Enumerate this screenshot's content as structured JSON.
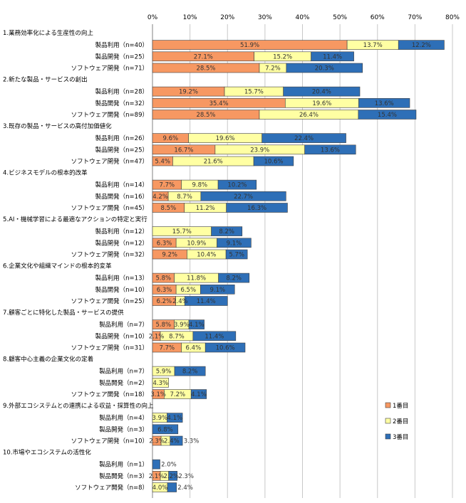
{
  "chart_data": {
    "type": "bar",
    "orientation": "horizontal",
    "stacked": true,
    "xlim": [
      0,
      80
    ],
    "x_ticks": [
      "0%",
      "10%",
      "20%",
      "30%",
      "40%",
      "50%",
      "60%",
      "70%",
      "80%"
    ],
    "grid": true,
    "legend_position": "right",
    "series": [
      {
        "name": "1番目",
        "color": "#F79862"
      },
      {
        "name": "2番目",
        "color": "#FFFFA3"
      },
      {
        "name": "3番目",
        "color": "#2E6FB7"
      }
    ],
    "groups": [
      {
        "label": "1.業務効率化による生産性の向上",
        "rows": [
          {
            "label": "製品利用（n=40）",
            "values": [
              51.9,
              13.7,
              12.2
            ],
            "labels": [
              "51.9%",
              "13.7%",
              "12.2%"
            ]
          },
          {
            "label": "製品開発（n=25）",
            "values": [
              27.1,
              15.2,
              11.4
            ],
            "labels": [
              "27.1%",
              "15.2%",
              "11.4%"
            ]
          },
          {
            "label": "ソフトウェア開発（n=71）",
            "values": [
              28.5,
              7.2,
              20.3
            ],
            "labels": [
              "28.5%",
              "7.2%",
              "20.3%"
            ]
          }
        ]
      },
      {
        "label": "2.新たな製品・サービスの創出",
        "rows": [
          {
            "label": "製品利用（n=28）",
            "values": [
              19.2,
              15.7,
              20.4
            ],
            "labels": [
              "19.2%",
              "15.7%",
              "20.4%"
            ]
          },
          {
            "label": "製品開発（n=32）",
            "values": [
              35.4,
              19.6,
              13.6
            ],
            "labels": [
              "35.4%",
              "19.6%",
              "13.6%"
            ]
          },
          {
            "label": "ソフトウェア開発（n=89）",
            "values": [
              28.5,
              26.4,
              15.4
            ],
            "labels": [
              "28.5%",
              "26.4%",
              "15.4%"
            ]
          }
        ]
      },
      {
        "label": "3.既存の製品・サービスの高付加価値化",
        "rows": [
          {
            "label": "製品利用（n=26）",
            "values": [
              9.6,
              19.6,
              22.4
            ],
            "labels": [
              "9.6%",
              "19.6%",
              "22.4%"
            ]
          },
          {
            "label": "製品開発（n=25）",
            "values": [
              16.7,
              23.9,
              13.6
            ],
            "labels": [
              "16.7%",
              "23.9%",
              "13.6%"
            ]
          },
          {
            "label": "ソフトウェア開発（n=47）",
            "values": [
              5.4,
              21.6,
              10.6
            ],
            "labels": [
              "5.4%",
              "21.6%",
              "10.6%"
            ]
          }
        ]
      },
      {
        "label": "4.ビジネスモデルの根本的改革",
        "rows": [
          {
            "label": "製品利用（n=14）",
            "values": [
              7.7,
              9.8,
              10.2
            ],
            "labels": [
              "7.7%",
              "9.8%",
              "10.2%"
            ]
          },
          {
            "label": "製品開発（n=16）",
            "values": [
              4.2,
              8.7,
              22.7
            ],
            "labels": [
              "4.2%",
              "8.7%",
              "22.7%"
            ]
          },
          {
            "label": "ソフトウェア開発（n=45）",
            "values": [
              8.5,
              11.2,
              16.3
            ],
            "labels": [
              "8.5%",
              "11.2%",
              "16.3%"
            ]
          }
        ]
      },
      {
        "label": "5.AI・機械学習による最適なアクションの特定と実行",
        "rows": [
          {
            "label": "製品利用（n=12）",
            "values": [
              0,
              15.7,
              8.2
            ],
            "labels": [
              "",
              "15.7%",
              "8.2%"
            ]
          },
          {
            "label": "製品開発（n=12）",
            "values": [
              6.3,
              10.9,
              9.1
            ],
            "labels": [
              "6.3%",
              "10.9%",
              "9.1%"
            ]
          },
          {
            "label": "ソフトウェア開発（n=32）",
            "values": [
              9.2,
              10.4,
              5.7
            ],
            "labels": [
              "9.2%",
              "10.4%",
              "5.7%"
            ]
          }
        ]
      },
      {
        "label": "6.企業文化や組織マインドの根本的変革",
        "rows": [
          {
            "label": "製品利用（n=13）",
            "values": [
              5.8,
              11.8,
              8.2
            ],
            "labels": [
              "5.8%",
              "11.8%",
              "8.2%"
            ]
          },
          {
            "label": "製品開発（n=10）",
            "values": [
              6.3,
              6.5,
              9.1
            ],
            "labels": [
              "6.3%",
              "6.5%",
              "9.1%"
            ]
          },
          {
            "label": "ソフトウェア開発（n=25）",
            "values": [
              6.2,
              2.4,
              11.4
            ],
            "labels": [
              "6.2%",
              "2.4%",
              "11.4%"
            ]
          }
        ]
      },
      {
        "label": "7.顧客ごとに特化した製品・サービスの提供",
        "rows": [
          {
            "label": "製品利用（n=7）",
            "values": [
              5.8,
              3.9,
              4.1
            ],
            "labels": [
              "5.8%",
              "3.9%",
              "4.1%"
            ]
          },
          {
            "label": "製品開発（n=10）",
            "values": [
              2.1,
              8.7,
              11.4
            ],
            "labels": [
              "2.1%",
              "8.7%",
              "11.4%"
            ]
          },
          {
            "label": "ソフトウェア開発（n=31）",
            "values": [
              7.7,
              6.4,
              10.6
            ],
            "labels": [
              "7.7%",
              "6.4%",
              "10.6%"
            ]
          }
        ]
      },
      {
        "label": "8.顧客中心主義の企業文化の定着",
        "rows": [
          {
            "label": "製品利用（n=7）",
            "values": [
              0,
              5.9,
              8.2
            ],
            "labels": [
              "",
              "5.9%",
              "8.2%"
            ]
          },
          {
            "label": "製品開発（n=2）",
            "values": [
              0,
              4.3,
              0
            ],
            "labels": [
              "",
              "4.3%",
              ""
            ]
          },
          {
            "label": "ソフトウェア開発（n=18）",
            "values": [
              3.1,
              7.2,
              4.1
            ],
            "labels": [
              "3.1%",
              "7.2%",
              "4.1%"
            ]
          }
        ]
      },
      {
        "label": "9.外部エコシステムとの連携による収益・採算性の向上",
        "rows": [
          {
            "label": "製品利用（n=4）",
            "values": [
              0,
              3.9,
              4.1
            ],
            "labels": [
              "",
              "3.9%",
              "4.1%"
            ]
          },
          {
            "label": "製品開発（n=3）",
            "values": [
              0,
              0,
              6.8
            ],
            "labels": [
              "",
              "",
              "6.8%"
            ]
          },
          {
            "label": "ソフトウェア開発（n=10）",
            "values": [
              2.3,
              2.4,
              3.3
            ],
            "labels": [
              "2.3%",
              "2.4%",
              "3.3%"
            ]
          }
        ]
      },
      {
        "label": "10.市場やエコシステムの活性化",
        "rows": [
          {
            "label": "製品利用（n=1）",
            "values": [
              0,
              0,
              2.0
            ],
            "labels": [
              "",
              "",
              "2.0%"
            ]
          },
          {
            "label": "製品開発（n=3）",
            "values": [
              2.1,
              2.2,
              2.3
            ],
            "labels": [
              "2.1%",
              "2.2%",
              "2.3%"
            ]
          },
          {
            "label": "ソフトウェア開発（n=8）",
            "values": [
              0,
              4.0,
              2.4
            ],
            "labels": [
              "",
              "4.0%",
              "2.4%"
            ]
          }
        ]
      }
    ]
  }
}
